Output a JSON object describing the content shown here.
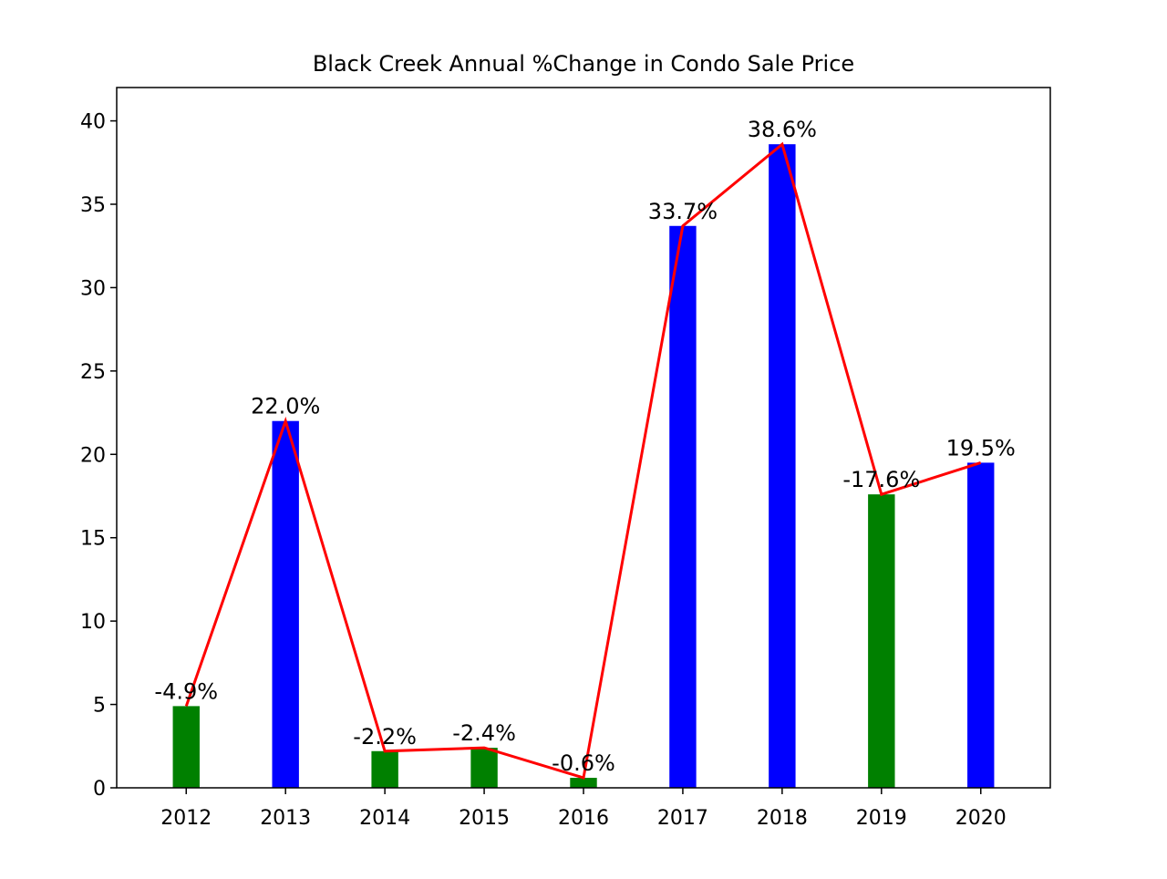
{
  "chart_data": {
    "type": "bar",
    "title": "Black Creek Annual %Change in Condo Sale Price",
    "xlabel": "",
    "ylabel": "",
    "categories": [
      "2012",
      "2013",
      "2014",
      "2015",
      "2016",
      "2017",
      "2018",
      "2019",
      "2020"
    ],
    "values": [
      4.9,
      22.0,
      2.2,
      2.4,
      0.6,
      33.7,
      38.6,
      17.6,
      19.5
    ],
    "data_labels": [
      "-4.9%",
      "22.0%",
      "-2.2%",
      "-2.4%",
      "-0.6%",
      "33.7%",
      "38.6%",
      "-17.6%",
      "19.5%"
    ],
    "bar_colors": [
      "#008000",
      "#0000ff",
      "#008000",
      "#008000",
      "#008000",
      "#0000ff",
      "#0000ff",
      "#008000",
      "#0000ff"
    ],
    "line_color": "#ff0000",
    "yticks": [
      "0",
      "5",
      "10",
      "15",
      "20",
      "25",
      "30",
      "35",
      "40"
    ],
    "ylim": [
      0,
      42
    ],
    "grid": false,
    "legend": "none"
  }
}
